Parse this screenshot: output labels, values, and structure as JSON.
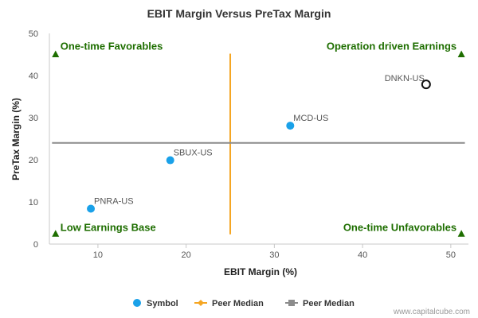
{
  "chart_data": {
    "type": "scatter",
    "title": "EBIT Margin Versus PreTax Margin",
    "xlabel": "EBIT Margin (%)",
    "ylabel": "PreTax Margin (%)",
    "xlim": [
      4.5,
      52
    ],
    "ylim": [
      0,
      50
    ],
    "x_ticks": [
      10,
      20,
      30,
      40,
      50
    ],
    "y_ticks": [
      0,
      10,
      20,
      30,
      40,
      50
    ],
    "points": [
      {
        "label": "PNRA-US",
        "x": 9.2,
        "y": 8.4,
        "style": "filled"
      },
      {
        "label": "SBUX-US",
        "x": 18.2,
        "y": 19.9,
        "style": "filled"
      },
      {
        "label": "MCD-US",
        "x": 31.8,
        "y": 28.1,
        "style": "filled"
      },
      {
        "label": "DNKN-US",
        "x": 47.2,
        "y": 37.9,
        "style": "hollow"
      }
    ],
    "peer_median_x": 25.0,
    "peer_median_y": 24.0,
    "peer_median_x_range": [
      2.3,
      45.2
    ],
    "peer_median_y_range": [
      4.8,
      51.6
    ],
    "quadrant_labels": [
      {
        "text": "One-time Favorables",
        "corner": "top-left",
        "marker_x": 5.2,
        "marker_y": 45.0
      },
      {
        "text": "Operation driven Earnings",
        "corner": "top-right",
        "marker_x": 51.2,
        "marker_y": 45.0
      },
      {
        "text": "Low Earnings Base",
        "corner": "bottom-left",
        "marker_x": 5.2,
        "marker_y": 2.4
      },
      {
        "text": "One-time Unfavorables",
        "corner": "bottom-right",
        "marker_x": 51.2,
        "marker_y": 2.4
      }
    ],
    "legend": {
      "placement": "bottom-center",
      "items": [
        {
          "label": "Symbol",
          "kind": "circle",
          "color": "#1aa1e9"
        },
        {
          "label": "Peer Median",
          "kind": "line-diamond",
          "color": "#f5a623"
        },
        {
          "label": "Peer Median",
          "kind": "line-square",
          "color": "#8c8c8c"
        }
      ]
    },
    "colors": {
      "point": "#1aa1e9",
      "hollow_point": "#111111",
      "median_vertical": "#f5a623",
      "median_horizontal": "#8c8c8c",
      "quadrant": "#1e6e00",
      "axis": "#c8c8c8"
    },
    "grid": false
  },
  "watermark": "www.capitalcube.com"
}
